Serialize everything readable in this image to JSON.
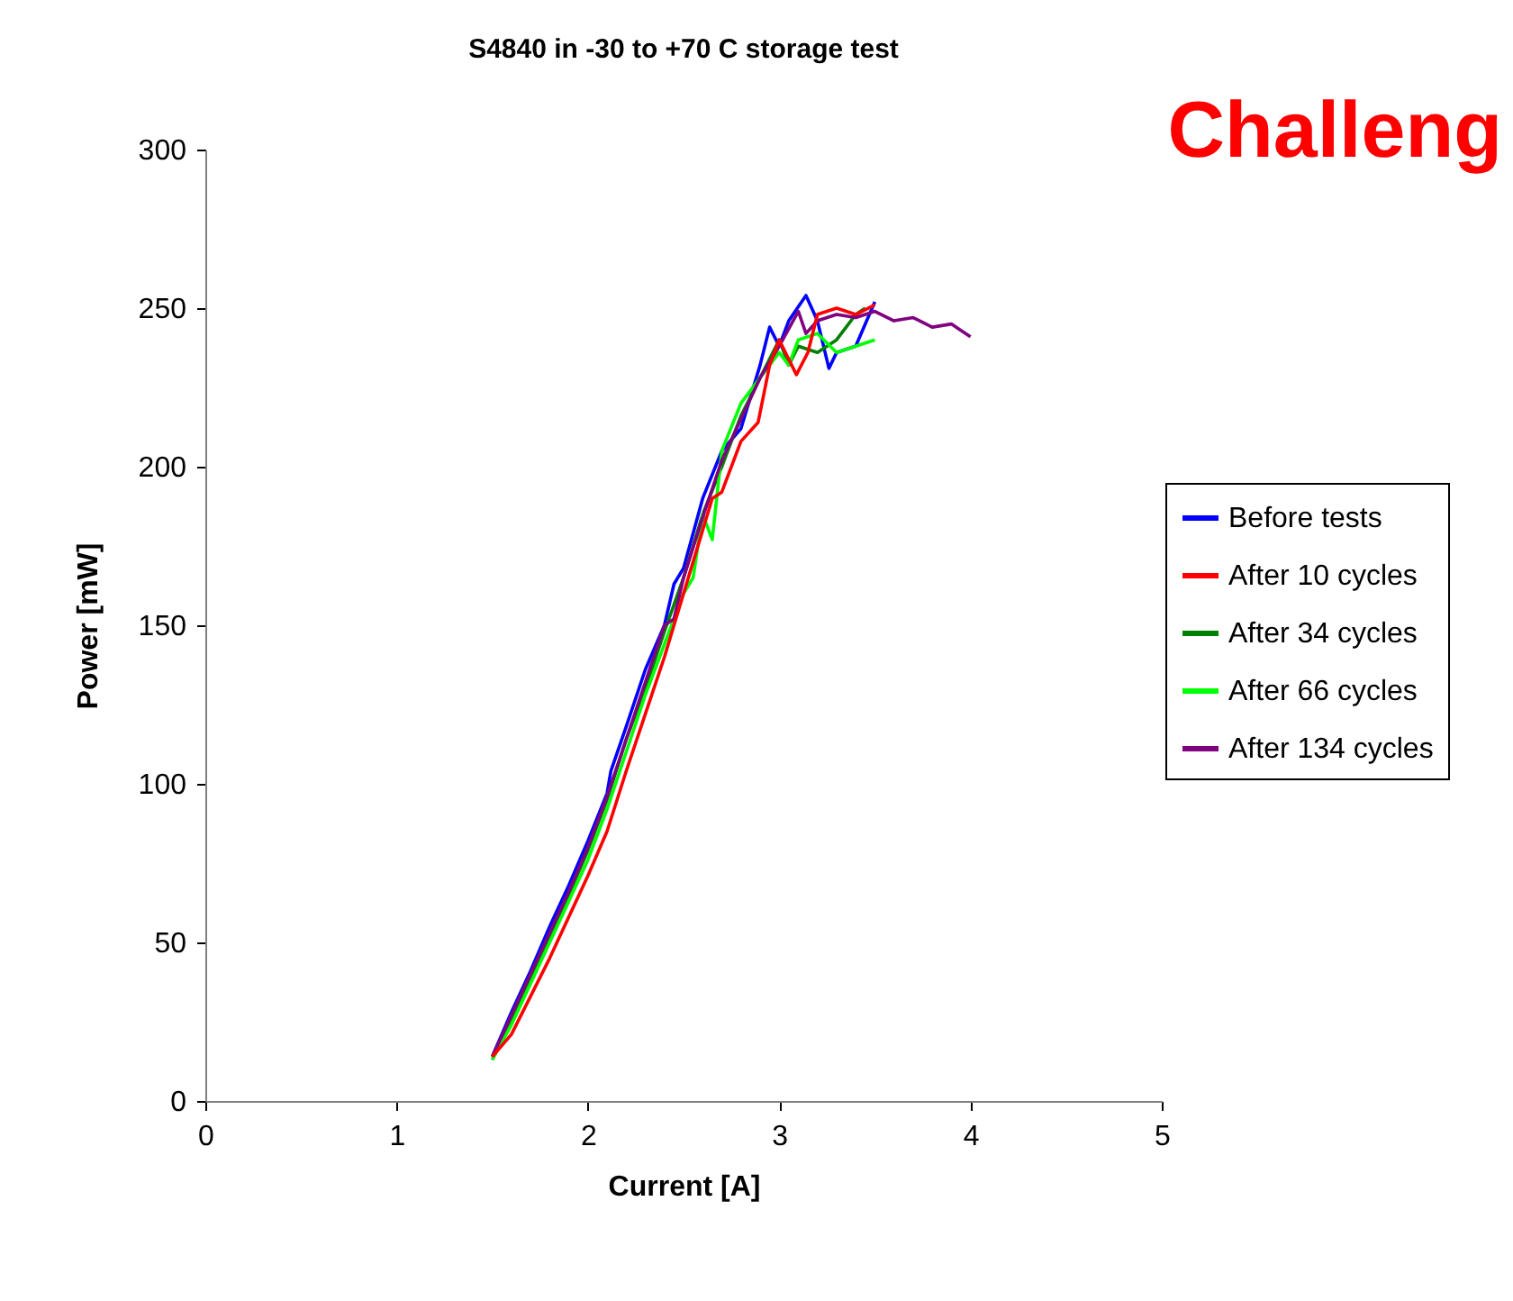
{
  "chart_data": {
    "type": "line",
    "title": "S4840 in -30 to +70 C storage test",
    "xlabel": "Current [A]",
    "ylabel": "Power [mW]",
    "xlim": [
      0,
      5
    ],
    "xticks": [
      0,
      1,
      2,
      3,
      4,
      5
    ],
    "ylim": [
      0,
      300
    ],
    "yticks": [
      0,
      50,
      100,
      150,
      200,
      250,
      300
    ],
    "grid": false,
    "legend": "right",
    "marker": "none",
    "line_style": "solid",
    "annotations": [
      "Challeng"
    ],
    "series": [
      {
        "name": "Before tests",
        "color": "#0000ff",
        "x": [
          1.5,
          1.6,
          1.7,
          1.8,
          1.9,
          2.0,
          2.1,
          2.12,
          2.2,
          2.3,
          2.4,
          2.45,
          2.5,
          2.6,
          2.7,
          2.8,
          2.9,
          2.95,
          3.0,
          3.05,
          3.14,
          3.2,
          3.26,
          3.3,
          3.4,
          3.5
        ],
        "values": [
          14,
          28,
          41,
          55,
          68,
          82,
          97,
          104,
          118,
          136,
          150,
          163,
          168,
          190,
          205,
          212,
          232,
          244,
          238,
          246,
          254,
          246,
          231,
          236,
          238,
          252
        ]
      },
      {
        "name": "After 10 cycles",
        "color": "#ff0000",
        "x": [
          1.5,
          1.6,
          1.7,
          1.8,
          1.9,
          2.0,
          2.1,
          2.2,
          2.3,
          2.4,
          2.5,
          2.6,
          2.65,
          2.7,
          2.8,
          2.89,
          2.95,
          3.0,
          3.09,
          3.15,
          3.2,
          3.3,
          3.4,
          3.5
        ],
        "values": [
          14,
          21,
          33,
          45,
          58,
          71,
          85,
          104,
          122,
          140,
          160,
          180,
          190,
          192,
          208,
          214,
          232,
          240,
          229,
          236,
          248,
          250,
          248,
          251
        ]
      },
      {
        "name": "After 34 cycles",
        "color": "#008000",
        "x": [
          1.5,
          1.6,
          1.7,
          1.8,
          1.9,
          2.0,
          2.1,
          2.2,
          2.3,
          2.4,
          2.5,
          2.6,
          2.7,
          2.8,
          2.9,
          3.0,
          3.05,
          3.1,
          3.2,
          3.3,
          3.35,
          3.4,
          3.45
        ],
        "values": [
          13,
          26,
          39,
          52,
          65,
          79,
          95,
          114,
          130,
          148,
          165,
          185,
          200,
          216,
          228,
          240,
          232,
          238,
          236,
          240,
          244,
          248,
          250
        ]
      },
      {
        "name": "After 66 cycles",
        "color": "#00ff00",
        "x": [
          1.5,
          1.6,
          1.7,
          1.8,
          1.9,
          2.0,
          2.1,
          2.2,
          2.3,
          2.4,
          2.5,
          2.55,
          2.6,
          2.65,
          2.7,
          2.8,
          2.9,
          3.0,
          3.05,
          3.1,
          3.2,
          3.3,
          3.4,
          3.5
        ],
        "values": [
          13,
          24,
          37,
          50,
          63,
          76,
          92,
          110,
          128,
          144,
          160,
          165,
          185,
          177,
          205,
          220,
          228,
          236,
          232,
          240,
          242,
          236,
          238,
          240
        ]
      },
      {
        "name": "After 134 cycles",
        "color": "#800080",
        "x": [
          1.5,
          1.6,
          1.7,
          1.8,
          1.9,
          2.0,
          2.1,
          2.2,
          2.3,
          2.4,
          2.45,
          2.5,
          2.6,
          2.7,
          2.8,
          2.9,
          3.0,
          3.1,
          3.14,
          3.2,
          3.3,
          3.4,
          3.5,
          3.6,
          3.7,
          3.8,
          3.9,
          3.95,
          4.0
        ],
        "values": [
          14,
          27,
          40,
          53,
          66,
          80,
          96,
          114,
          132,
          150,
          152,
          165,
          184,
          202,
          215,
          228,
          238,
          249,
          242,
          246,
          248,
          247,
          249,
          246,
          247,
          244,
          245,
          243,
          241
        ]
      }
    ]
  }
}
